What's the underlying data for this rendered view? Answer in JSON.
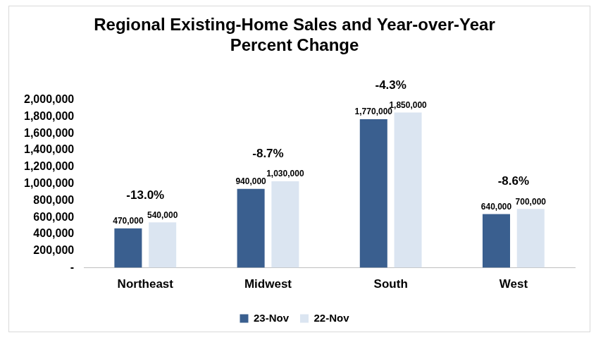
{
  "chart_data": {
    "type": "bar",
    "title": "Regional Existing-Home Sales and Year-over-Year Percent Change",
    "categories": [
      "Northeast",
      "Midwest",
      "South",
      "West"
    ],
    "series": [
      {
        "name": "23-Nov",
        "color": "#3a5f8f",
        "values": [
          470000,
          940000,
          1770000,
          640000
        ],
        "value_labels": [
          "470,000",
          "940,000",
          "1,770,000",
          "640,000"
        ]
      },
      {
        "name": "22-Nov",
        "color": "#dbe5f1",
        "values": [
          540000,
          1030000,
          1850000,
          700000
        ],
        "value_labels": [
          "540,000",
          "1,030,000",
          "1,850,000",
          "700,000"
        ]
      }
    ],
    "annotations": [
      {
        "category": "Northeast",
        "text": "-13.0%"
      },
      {
        "category": "Midwest",
        "text": "-8.7%"
      },
      {
        "category": "South",
        "text": "-4.3%"
      },
      {
        "category": "West",
        "text": "-8.6%"
      }
    ],
    "ylim": [
      0,
      2000000
    ],
    "yticks": [
      {
        "value": 0,
        "label": "-"
      },
      {
        "value": 200000,
        "label": "200,000"
      },
      {
        "value": 400000,
        "label": "400,000"
      },
      {
        "value": 600000,
        "label": "600,000"
      },
      {
        "value": 800000,
        "label": "800,000"
      },
      {
        "value": 1000000,
        "label": "1,000,000"
      },
      {
        "value": 1200000,
        "label": "1,200,000"
      },
      {
        "value": 1400000,
        "label": "1,400,000"
      },
      {
        "value": 1600000,
        "label": "1,600,000"
      },
      {
        "value": 1800000,
        "label": "1,800,000"
      },
      {
        "value": 2000000,
        "label": "2,000,000"
      }
    ],
    "grid": false,
    "legend": "bottom",
    "data_labels": true
  }
}
